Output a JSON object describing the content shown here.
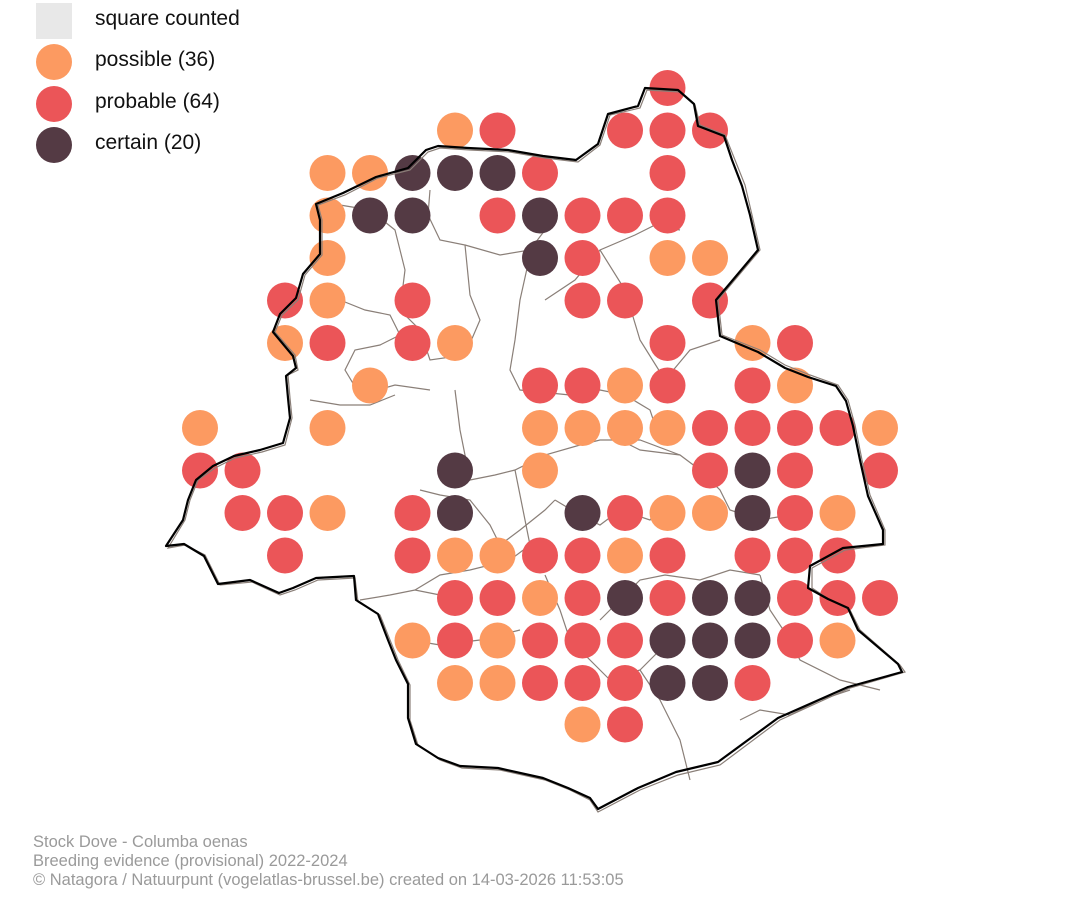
{
  "legend": {
    "items": [
      {
        "label": "square counted",
        "color": "#e8e8e8",
        "shape": "square"
      },
      {
        "label": "possible (36)",
        "color": "#fc9a61",
        "shape": "dot"
      },
      {
        "label": "probable (64)",
        "color": "#eb5558",
        "shape": "dot"
      },
      {
        "label": "certain (20)",
        "color": "#543a44",
        "shape": "dot"
      }
    ]
  },
  "caption": {
    "species": "Stock Dove - Columba oenas",
    "subtitle": "Breeding evidence (provisional) 2022-2024",
    "credit": "© Natagora / Natuurpunt (vogelatlas-brussel.be) created on 14-03-2026 11:53:05"
  },
  "map": {
    "colors": {
      "possible": "#fc9a61",
      "probable": "#eb5558",
      "certain": "#543a44",
      "border": "#000000",
      "districts": "#8a7f78"
    },
    "grid_rows": [
      {
        "row": 0,
        "cells": [
          {
            "col": 11,
            "status": "probable"
          }
        ]
      },
      {
        "row": 1,
        "cells": [
          {
            "col": 6,
            "status": "possible"
          },
          {
            "col": 7,
            "status": "probable"
          },
          {
            "col": 10,
            "status": "probable"
          },
          {
            "col": 11,
            "status": "probable"
          },
          {
            "col": 12,
            "status": "probable"
          }
        ]
      },
      {
        "row": 2,
        "cells": [
          {
            "col": 3,
            "status": "possible"
          },
          {
            "col": 4,
            "status": "possible"
          },
          {
            "col": 5,
            "status": "certain"
          },
          {
            "col": 6,
            "status": "certain"
          },
          {
            "col": 7,
            "status": "certain"
          },
          {
            "col": 8,
            "status": "probable"
          },
          {
            "col": 11,
            "status": "probable"
          }
        ]
      },
      {
        "row": 3,
        "cells": [
          {
            "col": 3,
            "status": "possible"
          },
          {
            "col": 4,
            "status": "certain"
          },
          {
            "col": 5,
            "status": "certain"
          },
          {
            "col": 7,
            "status": "probable"
          },
          {
            "col": 8,
            "status": "certain"
          },
          {
            "col": 9,
            "status": "probable"
          },
          {
            "col": 10,
            "status": "probable"
          },
          {
            "col": 11,
            "status": "probable"
          }
        ]
      },
      {
        "row": 4,
        "cells": [
          {
            "col": 3,
            "status": "possible"
          },
          {
            "col": 8,
            "status": "certain"
          },
          {
            "col": 9,
            "status": "probable"
          },
          {
            "col": 11,
            "status": "possible"
          },
          {
            "col": 12,
            "status": "possible"
          }
        ]
      },
      {
        "row": 5,
        "cells": [
          {
            "col": 2,
            "status": "probable"
          },
          {
            "col": 3,
            "status": "possible"
          },
          {
            "col": 5,
            "status": "probable"
          },
          {
            "col": 9,
            "status": "probable"
          },
          {
            "col": 10,
            "status": "probable"
          },
          {
            "col": 12,
            "status": "probable"
          }
        ]
      },
      {
        "row": 6,
        "cells": [
          {
            "col": 2,
            "status": "possible"
          },
          {
            "col": 3,
            "status": "probable"
          },
          {
            "col": 5,
            "status": "probable"
          },
          {
            "col": 6,
            "status": "possible"
          },
          {
            "col": 11,
            "status": "probable"
          },
          {
            "col": 13,
            "status": "possible"
          },
          {
            "col": 14,
            "status": "probable"
          }
        ]
      },
      {
        "row": 7,
        "cells": [
          {
            "col": 4,
            "status": "possible"
          },
          {
            "col": 8,
            "status": "probable"
          },
          {
            "col": 9,
            "status": "probable"
          },
          {
            "col": 10,
            "status": "possible"
          },
          {
            "col": 11,
            "status": "probable"
          },
          {
            "col": 13,
            "status": "probable"
          },
          {
            "col": 14,
            "status": "possible"
          }
        ]
      },
      {
        "row": 8,
        "cells": [
          {
            "col": 0,
            "status": "possible"
          },
          {
            "col": 3,
            "status": "possible"
          },
          {
            "col": 8,
            "status": "possible"
          },
          {
            "col": 9,
            "status": "possible"
          },
          {
            "col": 10,
            "status": "possible"
          },
          {
            "col": 11,
            "status": "possible"
          },
          {
            "col": 12,
            "status": "probable"
          },
          {
            "col": 13,
            "status": "probable"
          },
          {
            "col": 14,
            "status": "probable"
          },
          {
            "col": 15,
            "status": "probable"
          },
          {
            "col": 16,
            "status": "possible"
          }
        ]
      },
      {
        "row": 9,
        "cells": [
          {
            "col": 0,
            "status": "probable"
          },
          {
            "col": 1,
            "status": "probable"
          },
          {
            "col": 6,
            "status": "certain"
          },
          {
            "col": 8,
            "status": "possible"
          },
          {
            "col": 12,
            "status": "probable"
          },
          {
            "col": 13,
            "status": "certain"
          },
          {
            "col": 14,
            "status": "probable"
          },
          {
            "col": 16,
            "status": "probable"
          }
        ]
      },
      {
        "row": 10,
        "cells": [
          {
            "col": 1,
            "status": "probable"
          },
          {
            "col": 2,
            "status": "probable"
          },
          {
            "col": 3,
            "status": "possible"
          },
          {
            "col": 5,
            "status": "probable"
          },
          {
            "col": 6,
            "status": "certain"
          },
          {
            "col": 9,
            "status": "certain"
          },
          {
            "col": 10,
            "status": "probable"
          },
          {
            "col": 11,
            "status": "possible"
          },
          {
            "col": 12,
            "status": "possible"
          },
          {
            "col": 13,
            "status": "certain"
          },
          {
            "col": 14,
            "status": "probable"
          },
          {
            "col": 15,
            "status": "possible"
          }
        ]
      },
      {
        "row": 11,
        "cells": [
          {
            "col": 2,
            "status": "probable"
          },
          {
            "col": 5,
            "status": "probable"
          },
          {
            "col": 6,
            "status": "possible"
          },
          {
            "col": 7,
            "status": "possible"
          },
          {
            "col": 8,
            "status": "probable"
          },
          {
            "col": 9,
            "status": "probable"
          },
          {
            "col": 10,
            "status": "possible"
          },
          {
            "col": 11,
            "status": "probable"
          },
          {
            "col": 13,
            "status": "probable"
          },
          {
            "col": 14,
            "status": "probable"
          },
          {
            "col": 15,
            "status": "probable"
          }
        ]
      },
      {
        "row": 12,
        "cells": [
          {
            "col": 6,
            "status": "probable"
          },
          {
            "col": 7,
            "status": "probable"
          },
          {
            "col": 8,
            "status": "possible"
          },
          {
            "col": 9,
            "status": "probable"
          },
          {
            "col": 10,
            "status": "certain"
          },
          {
            "col": 11,
            "status": "probable"
          },
          {
            "col": 12,
            "status": "certain"
          },
          {
            "col": 13,
            "status": "certain"
          },
          {
            "col": 14,
            "status": "probable"
          },
          {
            "col": 15,
            "status": "probable"
          },
          {
            "col": 16,
            "status": "probable"
          }
        ]
      },
      {
        "row": 13,
        "cells": [
          {
            "col": 5,
            "status": "possible"
          },
          {
            "col": 6,
            "status": "probable"
          },
          {
            "col": 7,
            "status": "possible"
          },
          {
            "col": 8,
            "status": "probable"
          },
          {
            "col": 9,
            "status": "probable"
          },
          {
            "col": 10,
            "status": "probable"
          },
          {
            "col": 11,
            "status": "certain"
          },
          {
            "col": 12,
            "status": "certain"
          },
          {
            "col": 13,
            "status": "certain"
          },
          {
            "col": 14,
            "status": "probable"
          },
          {
            "col": 15,
            "status": "possible"
          }
        ]
      },
      {
        "row": 14,
        "cells": [
          {
            "col": 6,
            "status": "possible"
          },
          {
            "col": 7,
            "status": "possible"
          },
          {
            "col": 8,
            "status": "probable"
          },
          {
            "col": 9,
            "status": "probable"
          },
          {
            "col": 10,
            "status": "probable"
          },
          {
            "col": 11,
            "status": "certain"
          },
          {
            "col": 12,
            "status": "certain"
          },
          {
            "col": 13,
            "status": "probable"
          }
        ]
      },
      {
        "row": 15,
        "cells": [
          {
            "col": 9,
            "status": "possible"
          },
          {
            "col": 10,
            "status": "probable"
          }
        ]
      }
    ]
  }
}
